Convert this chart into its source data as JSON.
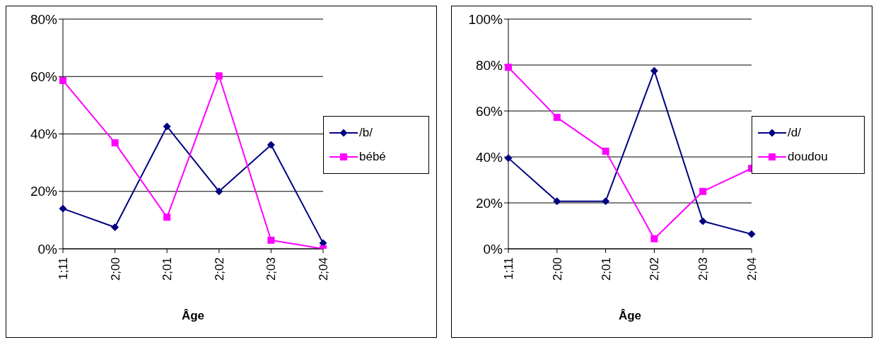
{
  "chart_data": [
    {
      "type": "line",
      "xlabel": "Âge",
      "categories": [
        "1;11",
        "2;00",
        "2;01",
        "2;02",
        "2;03",
        "2;04"
      ],
      "series": [
        {
          "name": "/b/",
          "color": "#000080",
          "marker": "diamond",
          "values": [
            14,
            7.5,
            42.6,
            20,
            36.2,
            2
          ]
        },
        {
          "name": "bébé",
          "color": "#ff00ff",
          "marker": "square",
          "values": [
            58.6,
            36.9,
            11,
            60.2,
            3,
            0
          ]
        }
      ],
      "ylim": [
        0,
        80
      ],
      "yticks": [
        {
          "value": 0,
          "label": "0%"
        },
        {
          "value": 20,
          "label": "20%"
        },
        {
          "value": 40,
          "label": "40%"
        },
        {
          "value": 60,
          "label": "60%"
        },
        {
          "value": 80,
          "label": "80%"
        }
      ],
      "grid": "y",
      "legend": "right"
    },
    {
      "type": "line",
      "xlabel": "Âge",
      "categories": [
        "1;11",
        "2;00",
        "2;01",
        "2;02",
        "2;03",
        "2;04"
      ],
      "series": [
        {
          "name": "/d/",
          "color": "#000080",
          "marker": "diamond",
          "values": [
            39.5,
            20.7,
            20.7,
            77.5,
            12,
            6.4
          ]
        },
        {
          "name": "doudou",
          "color": "#ff00ff",
          "marker": "square",
          "values": [
            79,
            57.2,
            42.5,
            4.4,
            25,
            35
          ]
        }
      ],
      "ylim": [
        0,
        100
      ],
      "yticks": [
        {
          "value": 0,
          "label": "0%"
        },
        {
          "value": 20,
          "label": "20%"
        },
        {
          "value": 40,
          "label": "40%"
        },
        {
          "value": 60,
          "label": "60%"
        },
        {
          "value": 80,
          "label": "80%"
        },
        {
          "value": 100,
          "label": "100%"
        }
      ],
      "grid": "y",
      "legend": "right"
    }
  ]
}
